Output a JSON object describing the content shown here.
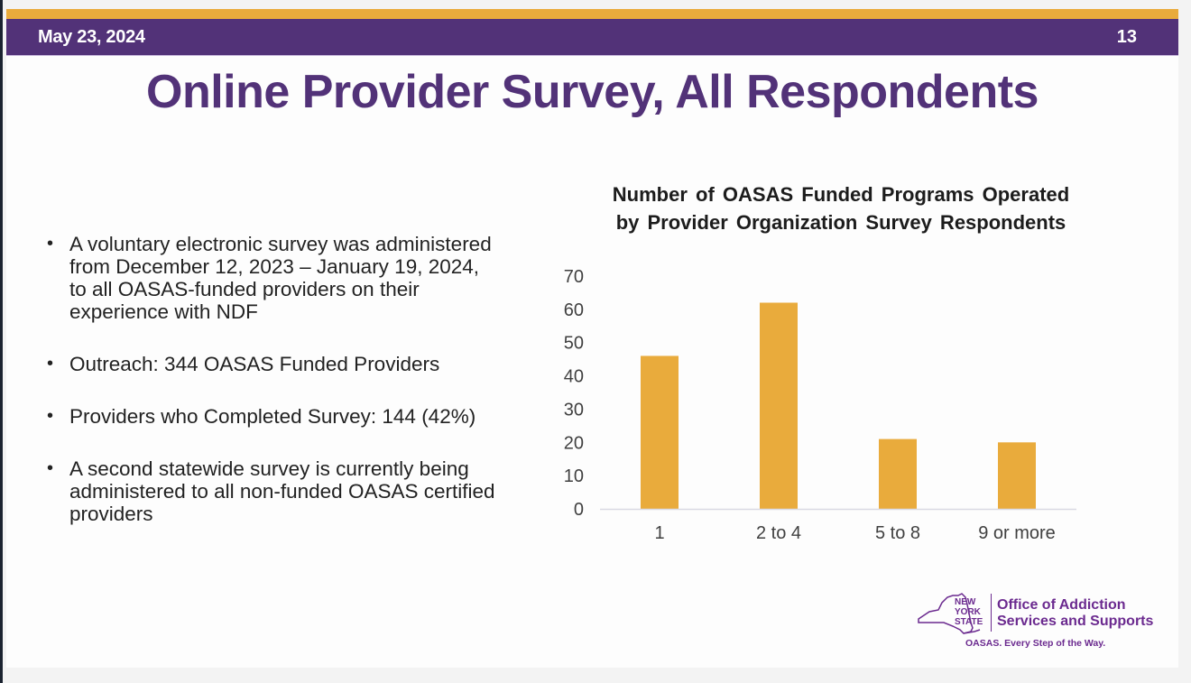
{
  "header": {
    "date": "May 23, 2024",
    "page_number": "13"
  },
  "title": "Online Provider Survey, All Respondents",
  "bullets": [
    "A voluntary electronic survey was administered from December 12, 2023 – January 19, 2024, to all OASAS-funded providers on their experience with NDF",
    "Outreach: 344 OASAS Funded Providers",
    "Providers who Completed Survey: 144 (42%)",
    "A second statewide survey is currently being administered to all non-funded OASAS certified providers"
  ],
  "bullet_glyph": "•",
  "logo": {
    "state_line1": "NEW",
    "state_line2": "YORK",
    "state_line3": "STATE",
    "org_line1": "Office of Addiction",
    "org_line2": "Services and Supports",
    "tagline": "OASAS. Every Step of the Way.",
    "icon": "new-york-state-outline-icon"
  },
  "colors": {
    "purple": "#523278",
    "gold": "#e9ab3c",
    "bar": "#e9ab3c",
    "logo_purple": "#6b2a8f"
  },
  "chart_data": {
    "type": "bar",
    "title": "Number of OASAS Funded Programs Operated by Provider Organization Survey Respondents",
    "title_lines": [
      "Number of OASAS Funded Programs Operated",
      "by Provider Organization Survey Respondents"
    ],
    "categories": [
      "1",
      "2 to 4",
      "5 to 8",
      "9 or more"
    ],
    "values": [
      46,
      62,
      21,
      20
    ],
    "xlabel": "",
    "ylabel": "",
    "ylim": [
      0,
      70
    ],
    "yticks": [
      0,
      10,
      20,
      30,
      40,
      50,
      60,
      70
    ],
    "grid": false,
    "legend": "none"
  }
}
